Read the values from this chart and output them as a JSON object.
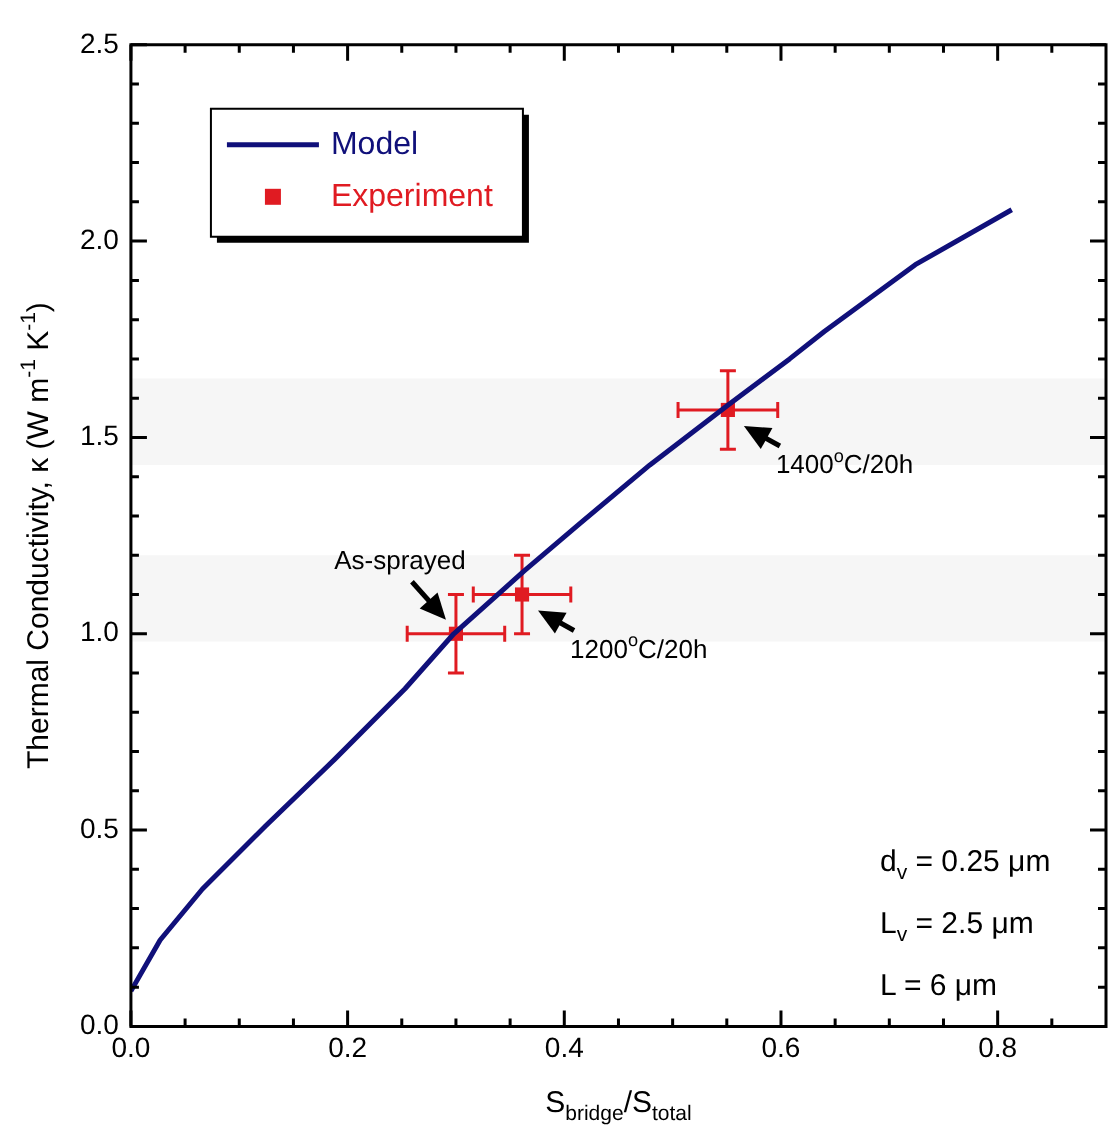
{
  "chart_data": {
    "type": "line",
    "xlabel": "S$_{bridge}$/S$_{total}$",
    "ylabel": "Thermal Conductivity, κ (W m$^{-1}$ K$^{-1}$)",
    "xlim": [
      0,
      0.9
    ],
    "ylim": [
      0,
      2.5
    ],
    "xticks": [
      {
        "value": 0,
        "label": "0.0"
      },
      {
        "value": 0.05,
        "label": null
      },
      {
        "value": 0.1,
        "label": null
      },
      {
        "value": 0.15,
        "label": null
      },
      {
        "value": 0.2,
        "label": "0.2"
      },
      {
        "value": 0.25,
        "label": null
      },
      {
        "value": 0.3,
        "label": null
      },
      {
        "value": 0.35,
        "label": null
      },
      {
        "value": 0.4,
        "label": "0.4"
      },
      {
        "value": 0.45,
        "label": null
      },
      {
        "value": 0.5,
        "label": null
      },
      {
        "value": 0.55,
        "label": null
      },
      {
        "value": 0.6,
        "label": "0.6"
      },
      {
        "value": 0.65,
        "label": null
      },
      {
        "value": 0.7,
        "label": null
      },
      {
        "value": 0.75,
        "label": null
      },
      {
        "value": 0.8,
        "label": "0.8"
      },
      {
        "value": 0.85,
        "label": null
      }
    ],
    "yticks": [
      {
        "value": 0,
        "label": "0.0"
      },
      {
        "value": 0.1,
        "label": null
      },
      {
        "value": 0.2,
        "label": null
      },
      {
        "value": 0.3,
        "label": null
      },
      {
        "value": 0.4,
        "label": null
      },
      {
        "value": 0.5,
        "label": "0.5"
      },
      {
        "value": 0.6,
        "label": null
      },
      {
        "value": 0.7,
        "label": null
      },
      {
        "value": 0.8,
        "label": null
      },
      {
        "value": 0.9,
        "label": null
      },
      {
        "value": 1,
        "label": "1.0"
      },
      {
        "value": 1.1,
        "label": null
      },
      {
        "value": 1.2,
        "label": null
      },
      {
        "value": 1.3,
        "label": null
      },
      {
        "value": 1.4,
        "label": null
      },
      {
        "value": 1.5,
        "label": "1.5"
      },
      {
        "value": 1.6,
        "label": null
      },
      {
        "value": 1.7,
        "label": null
      },
      {
        "value": 1.8,
        "label": null
      },
      {
        "value": 1.9,
        "label": null
      },
      {
        "value": 2,
        "label": "2.0"
      },
      {
        "value": 2.1,
        "label": null
      },
      {
        "value": 2.2,
        "label": null
      },
      {
        "value": 2.3,
        "label": null
      },
      {
        "value": 2.4,
        "label": null
      },
      {
        "value": 2.5,
        "label": "2.5"
      }
    ],
    "grid": false,
    "legend": "top left",
    "bands": [
      {
        "axis": "y",
        "from": 1.43,
        "to": 1.65,
        "color": "#f6f6f6"
      },
      {
        "axis": "y",
        "from": 0.98,
        "to": 1.2,
        "color": "#f6f6f6"
      }
    ],
    "series": [
      {
        "name": "Model",
        "color": "#10107a",
        "marker": "none",
        "x": [
          0,
          0.027,
          0.066,
          0.124,
          0.188,
          0.253,
          0.298,
          0.363,
          0.414,
          0.479,
          0.55,
          0.608,
          0.64,
          0.724,
          0.813
        ],
        "values": [
          0.09,
          0.22,
          0.35,
          0.51,
          0.68,
          0.86,
          1.0,
          1.16,
          1.28,
          1.43,
          1.58,
          1.7,
          1.77,
          1.94,
          2.08
        ]
      },
      {
        "name": "Experiment",
        "type": "scatter",
        "color": "#e01b22",
        "marker": "square",
        "x": [
          0.3,
          0.361,
          0.551
        ],
        "values": [
          1.0,
          1.1,
          1.57
        ],
        "errors": [
          0.1,
          0.1,
          0.1
        ],
        "xerrors": [
          0.045,
          0.045,
          0.046
        ]
      }
    ],
    "annotations": [
      {
        "text": "As-sprayed",
        "x": 0.3,
        "y": 1.0
      },
      {
        "text": "1200$^{o}$C/20h",
        "x": 0.361,
        "y": 1.1
      },
      {
        "text": "1400$^{o}$C/20h",
        "x": 0.551,
        "y": 1.57
      },
      "d$_{v}$ = 0.25 μm",
      "L$_{v}$ = 2.5 μm",
      "L = 6 μm"
    ]
  }
}
